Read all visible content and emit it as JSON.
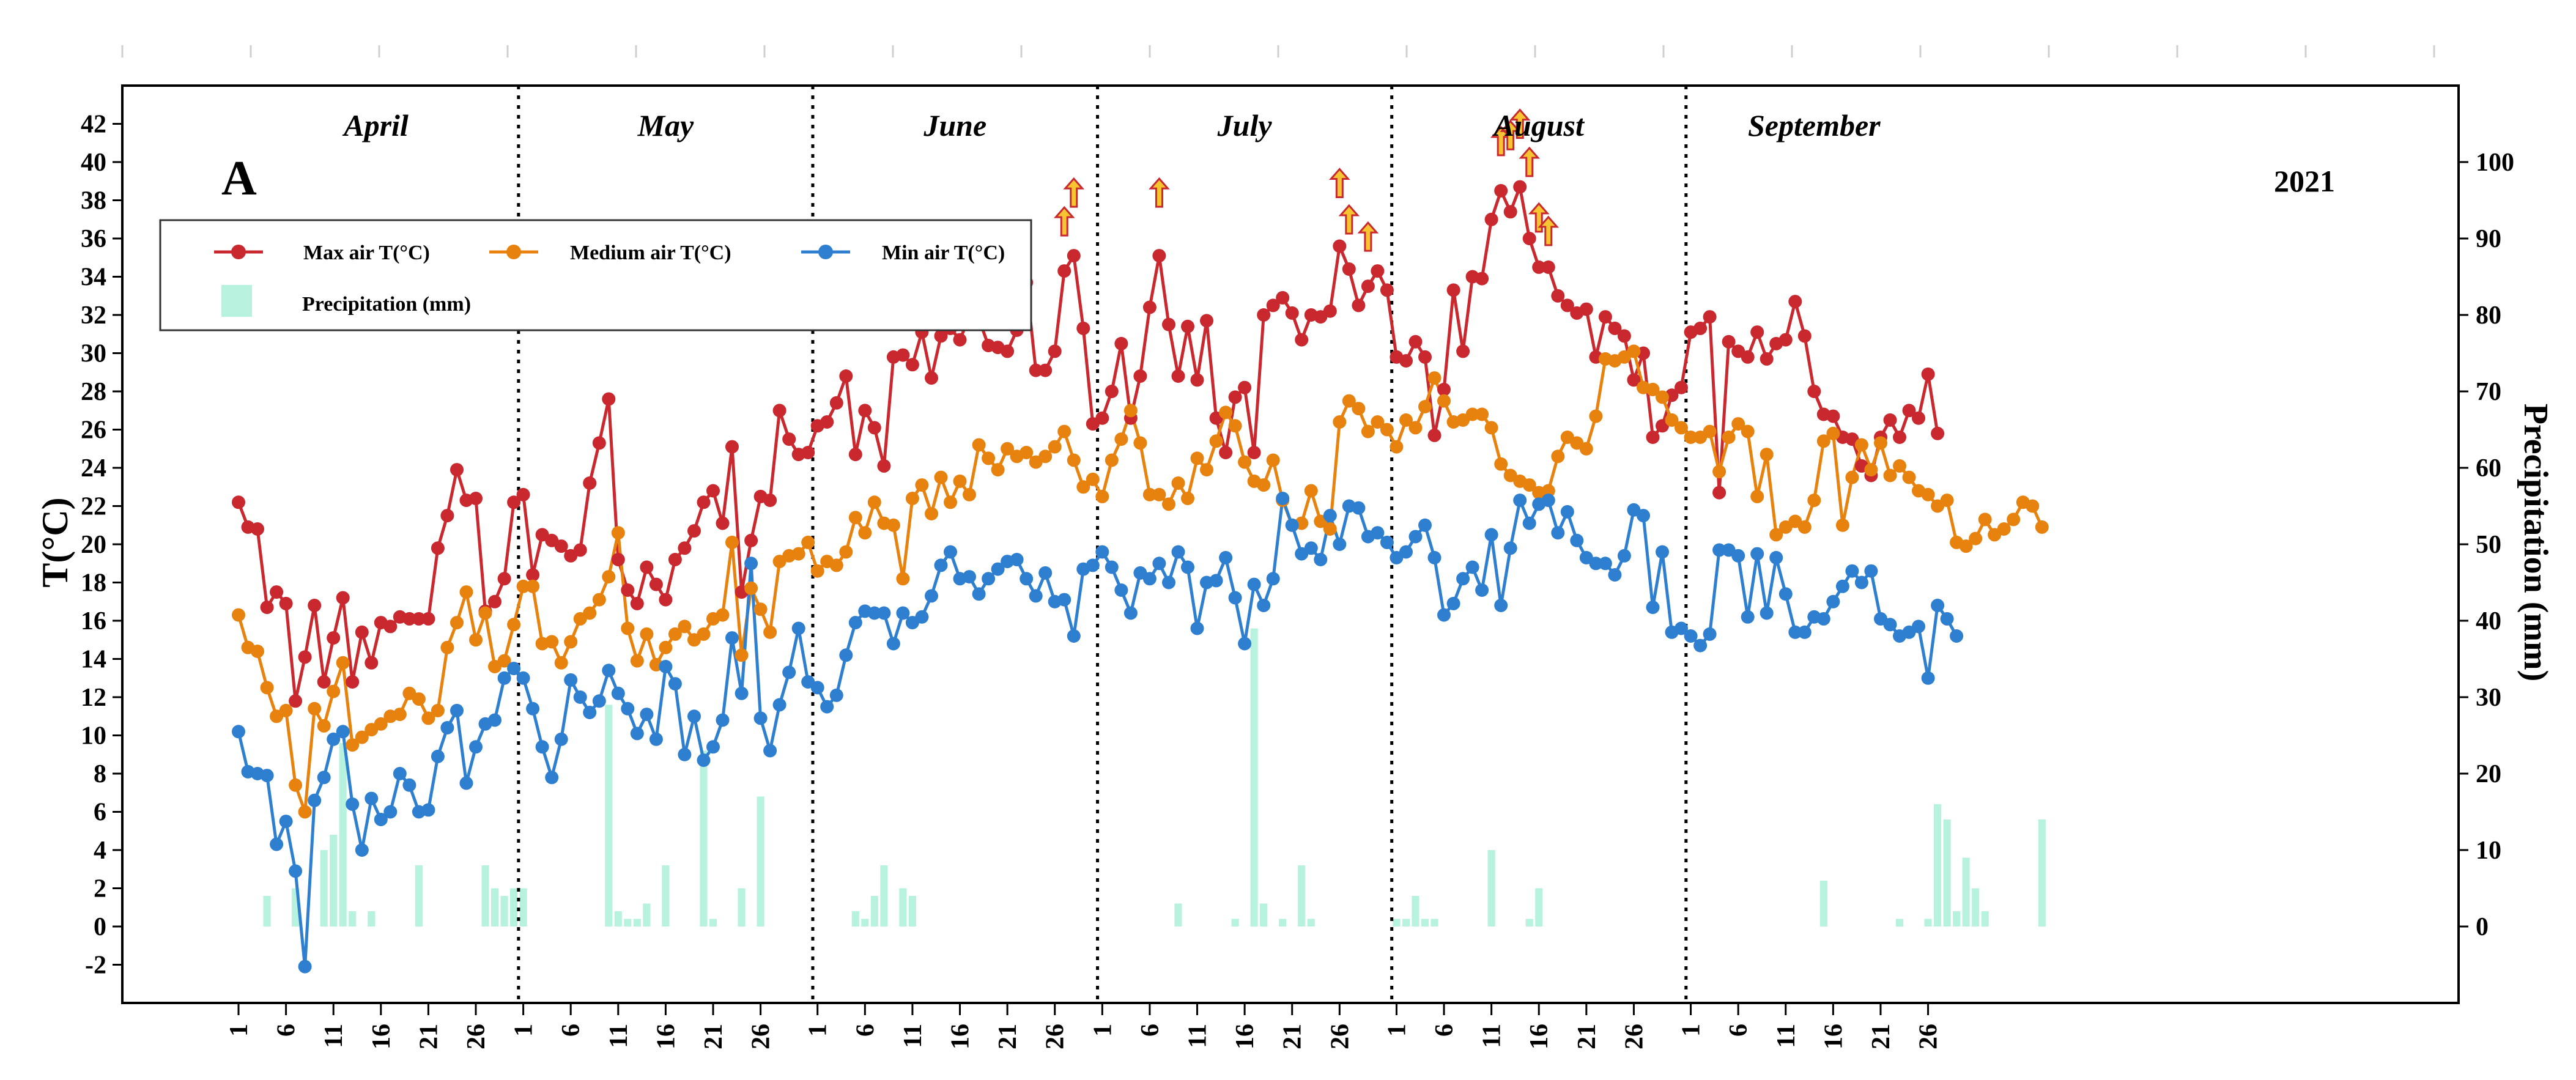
{
  "chart_data": {
    "type": "line",
    "panel_label": "A",
    "year_label": "2021",
    "ylabel_left": "T(°C)",
    "ylabel_right": "Precipitation (mm)",
    "ylim_left": [
      -4,
      44
    ],
    "ylim_right": [
      -10,
      110
    ],
    "yticks_left": [
      "-2",
      "0",
      "2",
      "4",
      "6",
      "8",
      "10",
      "12",
      "14",
      "16",
      "18",
      "20",
      "22",
      "24",
      "26",
      "28",
      "30",
      "32",
      "34",
      "36",
      "38",
      "40",
      "42"
    ],
    "yticks_right": [
      "0",
      "10",
      "20",
      "30",
      "40",
      "50",
      "60",
      "70",
      "80",
      "90",
      "100"
    ],
    "months": [
      {
        "name": "April",
        "days": 30
      },
      {
        "name": "May",
        "days": 31
      },
      {
        "name": "June",
        "days": 30
      },
      {
        "name": "July",
        "days": 31
      },
      {
        "name": "August",
        "days": 31
      },
      {
        "name": "September",
        "days": 27
      }
    ],
    "xtick_labels": [
      "1",
      "6",
      "11",
      "16",
      "21",
      "26"
    ],
    "legend": {
      "max": "Max air T(°C)",
      "med": "Medium air T(°C)",
      "min": "Min air T(°C)",
      "precip": "Precipitation (mm)"
    },
    "colors": {
      "max": "#c8282e",
      "med": "#e8820e",
      "min": "#2f7fd0",
      "precip": "#b7f2de",
      "arrow_fill": "#f7c531",
      "arrow_stroke": "#c8282e"
    },
    "series": {
      "max": [
        22.2,
        20.9,
        20.8,
        16.7,
        17.5,
        16.9,
        11.8,
        14.1,
        16.8,
        12.8,
        15.1,
        17.2,
        12.8,
        15.4,
        13.8,
        15.9,
        15.7,
        16.2,
        16.1,
        16.1,
        16.1,
        19.8,
        21.5,
        23.9,
        22.3,
        22.4,
        16.5,
        17.0,
        18.2,
        22.2,
        22.6,
        18.4,
        20.5,
        20.2,
        19.9,
        19.4,
        19.7,
        23.2,
        25.3,
        27.6,
        19.2,
        17.6,
        16.9,
        18.8,
        17.9,
        17.1,
        19.2,
        19.8,
        20.7,
        22.2,
        22.8,
        21.1,
        25.1,
        17.5,
        20.2,
        22.5,
        22.3,
        27.0,
        25.5,
        24.7,
        24.8,
        26.2,
        26.4,
        27.4,
        28.8,
        24.7,
        27.0,
        26.1,
        24.1,
        29.8,
        29.9,
        29.4,
        31.1,
        28.7,
        30.9,
        31.3,
        30.7,
        31.9,
        31.8,
        30.4,
        30.3,
        30.1,
        31.2,
        33.7,
        29.1,
        29.1,
        30.1,
        34.3,
        35.1,
        31.3,
        26.3,
        26.6,
        28.0,
        30.5,
        26.6,
        28.8,
        32.4,
        35.1,
        31.5,
        28.8,
        31.4,
        28.6,
        31.7,
        26.6,
        24.8,
        27.7,
        28.2,
        24.8,
        32.0,
        32.5,
        32.9,
        32.1,
        30.7,
        32.0,
        31.9,
        32.2,
        35.6,
        34.4,
        32.5,
        33.5,
        34.3,
        33.3,
        29.8,
        29.6,
        30.6,
        29.8,
        25.7,
        28.1,
        33.3,
        30.1,
        34.0,
        33.9,
        37.0,
        38.5,
        37.4,
        38.7,
        36.0,
        34.5,
        34.5,
        33.0,
        32.5,
        32.1,
        32.3,
        29.8,
        31.9,
        31.3,
        30.9,
        28.6,
        30.0,
        25.6,
        26.2,
        27.8,
        28.2,
        31.1,
        31.3,
        31.9,
        22.7,
        30.6,
        30.1,
        29.8,
        31.1,
        29.7,
        30.5,
        30.7,
        32.7,
        30.9,
        28.0,
        26.8,
        26.7,
        25.6,
        25.5,
        24.1,
        23.6,
        25.6,
        26.5,
        25.6,
        27.0,
        26.6,
        28.9,
        25.8
      ],
      "med": [
        16.3,
        14.6,
        14.4,
        12.5,
        11.0,
        11.3,
        7.4,
        6.0,
        11.4,
        10.5,
        12.3,
        13.8,
        9.5,
        9.9,
        10.3,
        10.6,
        11.0,
        11.1,
        12.2,
        11.9,
        10.9,
        11.3,
        14.6,
        15.9,
        17.5,
        15.0,
        16.4,
        13.6,
        13.9,
        15.8,
        17.8,
        17.8,
        14.8,
        14.9,
        13.8,
        14.9,
        16.1,
        16.4,
        17.1,
        18.3,
        20.6,
        15.6,
        13.9,
        15.3,
        13.7,
        14.6,
        15.3,
        15.7,
        15.0,
        15.3,
        16.1,
        16.3,
        20.1,
        14.2,
        17.7,
        16.6,
        15.4,
        19.1,
        19.4,
        19.5,
        20.1,
        18.6,
        19.1,
        18.9,
        19.6,
        21.4,
        20.6,
        22.2,
        21.1,
        21.0,
        18.2,
        22.4,
        23.1,
        21.6,
        23.5,
        22.2,
        23.3,
        22.6,
        25.2,
        24.5,
        23.9,
        25.0,
        24.6,
        24.8,
        24.3,
        24.6,
        25.1,
        25.9,
        24.4,
        23.0,
        23.4,
        22.5,
        24.4,
        25.5,
        27.0,
        25.3,
        22.6,
        22.6,
        22.1,
        23.2,
        22.4,
        24.5,
        23.9,
        25.4,
        26.9,
        26.2,
        24.3,
        23.3,
        23.1,
        24.4,
        22.3,
        21.0,
        21.1,
        22.8,
        21.2,
        20.8,
        26.4,
        27.5,
        27.1,
        25.9,
        26.4,
        26.0,
        25.1,
        26.5,
        26.1,
        27.2,
        28.7,
        27.5,
        26.4,
        26.5,
        26.8,
        26.8,
        26.1,
        24.2,
        23.6,
        23.3,
        23.1,
        22.7,
        22.8,
        24.6,
        25.6,
        25.3,
        25.0,
        26.7,
        29.7,
        29.6,
        29.8,
        30.1,
        28.2,
        28.1,
        27.7,
        26.5,
        26.1,
        25.6,
        25.6,
        25.9,
        23.8,
        25.6,
        26.3,
        25.9,
        22.5,
        24.7,
        20.5,
        20.9,
        21.2,
        20.9,
        22.3,
        25.4,
        25.8,
        21.0,
        23.5,
        25.2,
        23.9,
        25.3,
        23.6,
        24.1,
        23.5,
        22.8,
        22.6,
        22.0,
        22.3,
        20.1,
        19.9,
        20.3,
        21.3,
        20.5,
        20.8,
        21.3,
        22.2,
        22.0,
        20.9
      ],
      "min": [
        10.2,
        8.1,
        8.0,
        7.9,
        4.3,
        5.5,
        2.9,
        -2.1,
        6.6,
        7.8,
        9.8,
        10.2,
        6.4,
        4.0,
        6.7,
        5.6,
        6.0,
        8.0,
        7.4,
        6.0,
        6.1,
        8.9,
        10.4,
        11.3,
        7.5,
        9.4,
        10.6,
        10.8,
        13.0,
        13.5,
        13.0,
        11.4,
        9.4,
        7.8,
        9.8,
        12.9,
        12.0,
        11.2,
        11.8,
        13.4,
        12.2,
        11.4,
        10.1,
        11.1,
        9.8,
        13.6,
        12.7,
        9.0,
        11.0,
        8.7,
        9.4,
        10.8,
        15.1,
        12.2,
        19.0,
        10.9,
        9.2,
        11.6,
        13.3,
        15.6,
        12.8,
        12.5,
        11.5,
        12.1,
        14.2,
        15.9,
        16.5,
        16.4,
        16.4,
        14.8,
        16.4,
        15.9,
        16.2,
        17.3,
        18.9,
        19.6,
        18.2,
        18.3,
        17.4,
        18.2,
        18.7,
        19.1,
        19.2,
        18.2,
        17.3,
        18.5,
        17.0,
        17.1,
        15.2,
        18.7,
        18.9,
        19.6,
        18.8,
        17.6,
        16.4,
        18.5,
        18.2,
        19.0,
        18.0,
        19.6,
        18.8,
        15.6,
        18.0,
        18.1,
        19.3,
        17.2,
        14.8,
        17.9,
        16.8,
        18.2,
        22.4,
        21.0,
        19.5,
        19.8,
        19.2,
        21.5,
        20.0,
        22.0,
        21.9,
        20.4,
        20.6,
        20.1,
        19.3,
        19.6,
        20.4,
        21.0,
        19.3,
        16.3,
        16.9,
        18.2,
        18.8,
        17.6,
        20.5,
        16.8,
        19.8,
        22.3,
        21.1,
        22.1,
        22.3,
        20.6,
        21.7,
        20.2,
        19.3,
        19.0,
        19.0,
        18.4,
        19.4,
        21.8,
        21.5,
        16.7,
        19.6,
        15.4,
        15.6,
        15.2,
        14.7,
        15.3,
        19.7,
        19.7,
        19.4,
        16.2,
        19.5,
        16.4,
        19.3,
        17.4,
        15.4,
        15.4,
        16.2,
        16.1,
        17.0,
        17.8,
        18.6,
        18.0,
        18.6,
        16.1,
        15.8,
        15.2,
        15.4,
        15.7,
        13.0,
        16.8,
        16.1,
        15.2
      ]
    },
    "precipitation": [
      0,
      0,
      0,
      4,
      0,
      0,
      5,
      0,
      0,
      10,
      12,
      24,
      2,
      0,
      2,
      0,
      0,
      0,
      0,
      8,
      0,
      0,
      0,
      0,
      0,
      0,
      8,
      5,
      4,
      5,
      5,
      0,
      0,
      0,
      0,
      0,
      0,
      0,
      0,
      29,
      2,
      1,
      1,
      3,
      0,
      8,
      0,
      0,
      0,
      23,
      1,
      0,
      0,
      5,
      0,
      17,
      0,
      0,
      0,
      0,
      0,
      0,
      0,
      0,
      0,
      2,
      1,
      4,
      8,
      0,
      5,
      4,
      0,
      0,
      0,
      0,
      0,
      0,
      0,
      0,
      0,
      0,
      0,
      0,
      0,
      0,
      0,
      0,
      0,
      0,
      0,
      0,
      0,
      0,
      0,
      0,
      0,
      0,
      0,
      3,
      0,
      0,
      0,
      0,
      0,
      1,
      0,
      39,
      3,
      0,
      1,
      0,
      8,
      1,
      0,
      0,
      0,
      0,
      0,
      0,
      0,
      0,
      1,
      1,
      4,
      1,
      1,
      0,
      0,
      0,
      0,
      0,
      10,
      0,
      0,
      0,
      1,
      5,
      0,
      0,
      0,
      0,
      0,
      0,
      0,
      0,
      0,
      0,
      0,
      0,
      0,
      0,
      0,
      0,
      0,
      0,
      0,
      0,
      0,
      0,
      0,
      0,
      0,
      0,
      0,
      0,
      0,
      6,
      0,
      0,
      0,
      0,
      0,
      0,
      0,
      1,
      0,
      0,
      1,
      16,
      14,
      2,
      9,
      5,
      2,
      0,
      0,
      0,
      0,
      0,
      14,
      0
    ],
    "heat_arrows": [
      {
        "day": 87,
        "level": 1
      },
      {
        "day": 88,
        "level": 2
      },
      {
        "day": 97,
        "level": 2
      },
      {
        "day": 116,
        "level": 2
      },
      {
        "day": 117,
        "level": 1
      },
      {
        "day": 119,
        "level": 1
      },
      {
        "day": 133,
        "level": 1
      },
      {
        "day": 134,
        "level": 3
      },
      {
        "day": 135,
        "level": 2
      },
      {
        "day": 136,
        "level": 3
      },
      {
        "day": 137,
        "level": 1
      },
      {
        "day": 138,
        "level": 0
      }
    ]
  }
}
